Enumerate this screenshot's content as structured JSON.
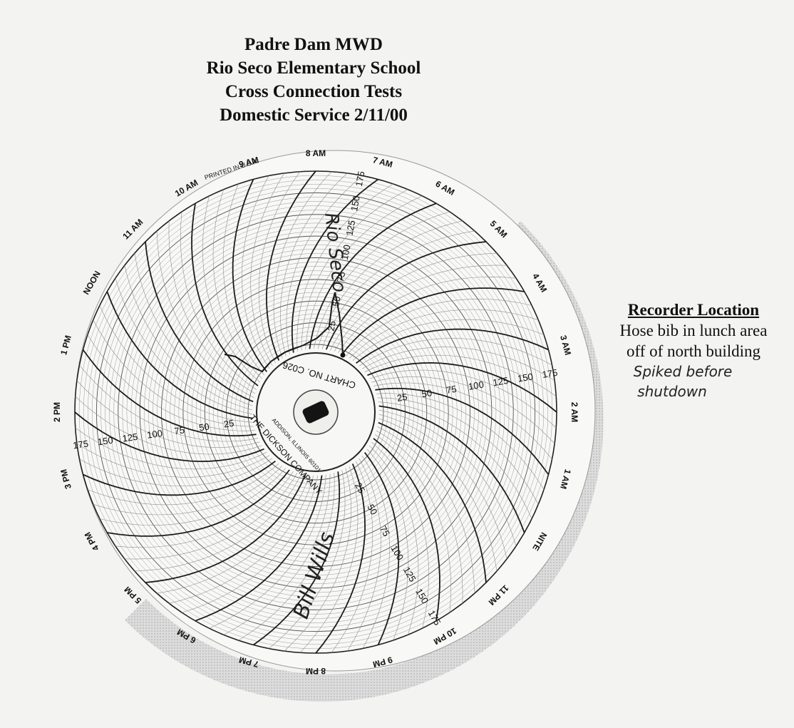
{
  "title": {
    "line1": "Padre Dam MWD",
    "line2": "Rio Seco Elementary School",
    "line3": "Cross Connection Tests",
    "line4": "Domestic  Service 2/11/00"
  },
  "recorder": {
    "heading": "Recorder Location",
    "line1": "Hose bib in lunch area",
    "line2": "off of north building",
    "note1": "Spiked before",
    "note2": "shutdown"
  },
  "chart": {
    "chart_no": "CHART NO. C026",
    "company": "THE DICKSON COMPANY",
    "company_address": "ADDISON, ILLINOIS 60101",
    "printed": "PRINTED IN U.S.A.",
    "hours": [
      "NITE",
      "1 AM",
      "2 AM",
      "3 AM",
      "4 AM",
      "5 AM",
      "6 AM",
      "7 AM",
      "8 AM",
      "9 AM",
      "10 AM",
      "11 AM",
      "NOON",
      "1 PM",
      "2 PM",
      "3 PM",
      "4 PM",
      "5 PM",
      "6 PM",
      "7 PM",
      "8 PM",
      "9 PM",
      "10 PM",
      "11 PM"
    ],
    "scale": [
      "25",
      "50",
      "75",
      "100",
      "125",
      "150",
      "175"
    ],
    "handwriting_1": "Rio Seco",
    "handwriting_2": "Bill Wills"
  }
}
